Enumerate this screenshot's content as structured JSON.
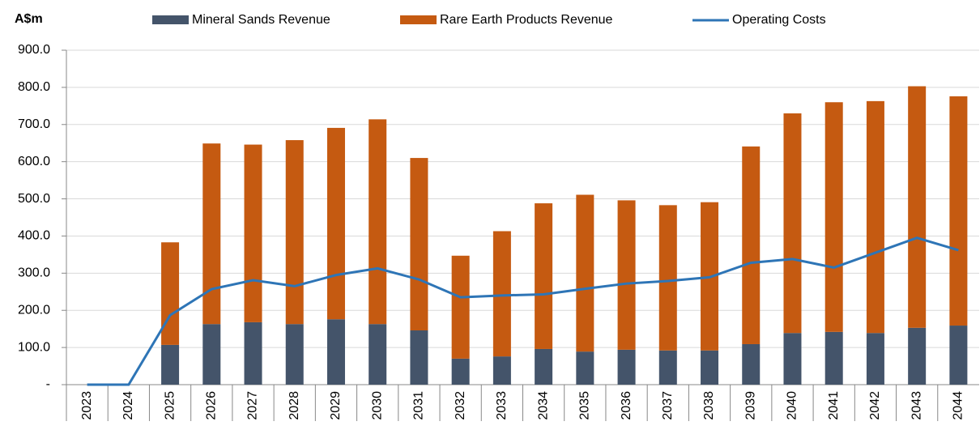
{
  "chart_data": {
    "type": "stacked_bar_line",
    "y_label": "A$m",
    "categories": [
      "2023",
      "2024",
      "2025",
      "2026",
      "2027",
      "2028",
      "2029",
      "2030",
      "2031",
      "2032",
      "2033",
      "2034",
      "2035",
      "2036",
      "2037",
      "2038",
      "2039",
      "2040",
      "2041",
      "2042",
      "2043",
      "2044"
    ],
    "series": [
      {
        "name": "Mineral Sands Revenue",
        "color": "#44546a",
        "kind": "bar",
        "values": [
          0,
          0,
          107,
          163,
          168,
          163,
          176,
          163,
          146,
          70,
          76,
          96,
          89,
          94,
          92,
          92,
          109,
          139,
          142,
          139,
          153,
          159
        ]
      },
      {
        "name": "Rare Earth Products Revenue",
        "color": "#c55a11",
        "kind": "bar",
        "values": [
          0,
          0,
          276,
          486,
          478,
          495,
          515,
          551,
          464,
          277,
          337,
          392,
          422,
          402,
          391,
          399,
          532,
          591,
          618,
          624,
          650,
          617
        ]
      },
      {
        "name": "Operating Costs",
        "color": "#2e75b6",
        "kind": "line",
        "values": [
          0,
          0,
          187,
          257,
          281,
          265,
          295,
          313,
          283,
          235,
          240,
          243,
          258,
          272,
          279,
          289,
          328,
          338,
          315,
          355,
          395,
          362
        ]
      }
    ],
    "ylim": [
      0,
      900
    ],
    "yticks": [
      {
        "value": 0,
        "label": "-"
      },
      {
        "value": 100,
        "label": "100.0"
      },
      {
        "value": 200,
        "label": "200.0"
      },
      {
        "value": 300,
        "label": "300.0"
      },
      {
        "value": 400,
        "label": "400.0"
      },
      {
        "value": 500,
        "label": "500.0"
      },
      {
        "value": 600,
        "label": "600.0"
      },
      {
        "value": 700,
        "label": "700.0"
      },
      {
        "value": 800,
        "label": "800.0"
      },
      {
        "value": 900,
        "label": "900.0"
      }
    ],
    "grid": true,
    "legend": "top"
  }
}
